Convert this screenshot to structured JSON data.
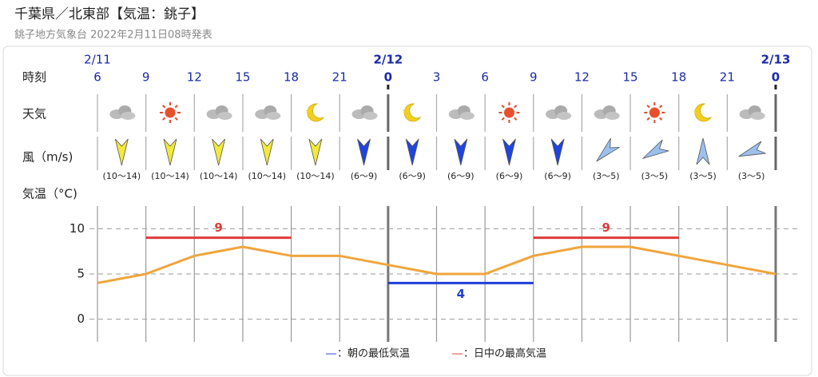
{
  "header": {
    "title": "千葉県／北東部【気温：銚子】",
    "subtitle": "銚子地方気象台 2022年2月11日08時発表"
  },
  "chart_data": {
    "type": "line",
    "row_labels": {
      "time": "時刻",
      "weather": "天気",
      "wind": "風（m/s)",
      "temperature": "気温（°C)"
    },
    "xlim": [
      6,
      48
    ],
    "xticks": [
      6,
      9,
      12,
      15,
      18,
      21,
      {
        "value": 24,
        "label": "0"
      },
      {
        "value": 27,
        "label": "3"
      },
      {
        "value": 30,
        "label": "6"
      },
      {
        "value": 33,
        "label": "9"
      },
      {
        "value": 36,
        "label": "12"
      },
      {
        "value": 39,
        "label": "15"
      },
      {
        "value": 42,
        "label": "18"
      },
      {
        "value": 45,
        "label": "21"
      },
      {
        "value": 48,
        "label": "0"
      }
    ],
    "date_ticks": [
      {
        "value": 6,
        "label": "2/11"
      },
      {
        "value": 24,
        "label": "2/12"
      },
      {
        "value": 48,
        "label": "2/13"
      }
    ],
    "x": [
      6,
      9,
      12,
      15,
      18,
      21,
      24,
      27,
      30,
      33,
      36,
      39,
      42,
      45,
      48
    ],
    "series": [
      {
        "color": "#f0a53c",
        "values": [
          4,
          5,
          7,
          8,
          7,
          7,
          6,
          5,
          5,
          7,
          8,
          8,
          7,
          6,
          5
        ]
      }
    ],
    "ylim": [
      -2.5,
      12.5
    ],
    "yticks": [
      0,
      5,
      10
    ],
    "grid": true,
    "min_temps": {
      "color": "#1f3fd6",
      "bars": [
        {
          "value": 4,
          "x": [
            24,
            33
          ]
        }
      ]
    },
    "max_temps": {
      "color": "#e03a3a",
      "bars": [
        {
          "value": 9,
          "x": [
            9,
            18
          ]
        },
        {
          "value": 9,
          "x": [
            33,
            42
          ]
        }
      ]
    },
    "legend": [
      {
        "symbol": "―",
        "label": "：朝の最低気温",
        "color": "#1f3fd6"
      },
      {
        "symbol": "―",
        "label": "：日中の最高気温",
        "color": "#e03a3a"
      }
    ],
    "weather": [
      "cloudy",
      "sunny",
      "cloudy",
      "cloudy",
      "clear-night",
      "cloudy",
      "clear-night",
      "cloudy",
      "sunny",
      "cloudy",
      "cloudy",
      "sunny",
      "clear-night",
      "cloudy"
    ],
    "wind": {
      "labels": [
        "(10〜14)",
        "(10〜14)",
        "(10〜14)",
        "(10〜14)",
        "(10〜14)",
        "(6〜9)",
        "(6〜9)",
        "(6〜9)",
        "(6〜9)",
        "(6〜9)",
        "(3〜5)",
        "(3〜5)",
        "(3〜5)",
        "(3〜5)"
      ],
      "colors": [
        "#f3e93a",
        "#f3e93a",
        "#f3e93a",
        "#f3e93a",
        "#f3e93a",
        "#1f45e0",
        "#1f45e0",
        "#1f45e0",
        "#1f45e0",
        "#1f45e0",
        "#9cc0ee",
        "#9cc0ee",
        "#9cc0ee",
        "#9cc0ee"
      ],
      "direction_deg": [
        0,
        0,
        0,
        0,
        0,
        0,
        0,
        0,
        0,
        0,
        45,
        60,
        180,
        70
      ]
    }
  }
}
